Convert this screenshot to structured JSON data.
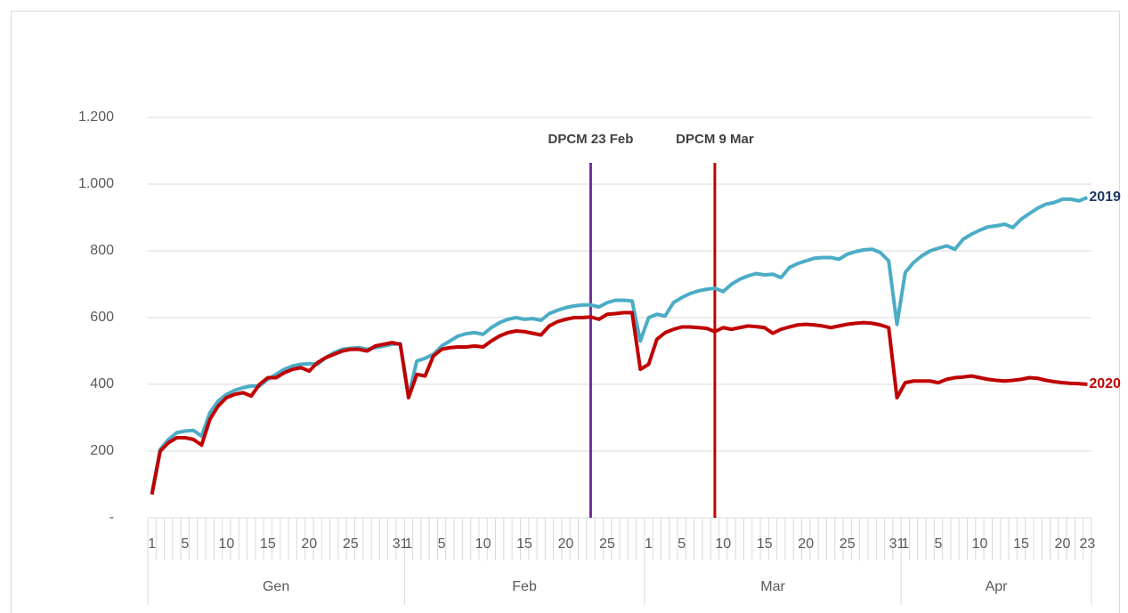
{
  "chart_data": {
    "type": "line",
    "categories": [
      "1",
      null,
      null,
      null,
      "5",
      null,
      null,
      null,
      null,
      "10",
      null,
      null,
      null,
      null,
      "15",
      null,
      null,
      null,
      null,
      "20",
      null,
      null,
      null,
      null,
      "25",
      null,
      null,
      null,
      null,
      null,
      "31",
      "1",
      null,
      null,
      null,
      "5",
      null,
      null,
      null,
      null,
      "10",
      null,
      null,
      null,
      null,
      "15",
      null,
      null,
      null,
      null,
      "20",
      null,
      null,
      null,
      null,
      "25",
      null,
      null,
      null,
      null,
      "1",
      null,
      null,
      null,
      "5",
      null,
      null,
      null,
      null,
      "10",
      null,
      null,
      null,
      null,
      "15",
      null,
      null,
      null,
      null,
      "20",
      null,
      null,
      null,
      null,
      "25",
      null,
      null,
      null,
      null,
      null,
      "31",
      "1",
      null,
      null,
      null,
      "5",
      null,
      null,
      null,
      null,
      "10",
      null,
      null,
      null,
      null,
      "15",
      null,
      null,
      null,
      null,
      "20",
      null,
      null,
      "23"
    ],
    "months": [
      "Gen",
      "Gen",
      "Gen",
      "Gen",
      "Gen",
      "Gen",
      "Gen",
      "Gen",
      "Gen",
      "Gen",
      "Gen",
      "Gen",
      "Gen",
      "Gen",
      "Gen",
      "Gen",
      "Gen",
      "Gen",
      "Gen",
      "Gen",
      "Gen",
      "Gen",
      "Gen",
      "Gen",
      "Gen",
      "Gen",
      "Gen",
      "Gen",
      "Gen",
      "Gen",
      "Gen",
      "Feb",
      "Feb",
      "Feb",
      "Feb",
      "Feb",
      "Feb",
      "Feb",
      "Feb",
      "Feb",
      "Feb",
      "Feb",
      "Feb",
      "Feb",
      "Feb",
      "Feb",
      "Feb",
      "Feb",
      "Feb",
      "Feb",
      "Feb",
      "Feb",
      "Feb",
      "Feb",
      "Feb",
      "Feb",
      "Feb",
      "Feb",
      "Feb",
      "Feb",
      "Mar",
      "Mar",
      "Mar",
      "Mar",
      "Mar",
      "Mar",
      "Mar",
      "Mar",
      "Mar",
      "Mar",
      "Mar",
      "Mar",
      "Mar",
      "Mar",
      "Mar",
      "Mar",
      "Mar",
      "Mar",
      "Mar",
      "Mar",
      "Mar",
      "Mar",
      "Mar",
      "Mar",
      "Mar",
      "Mar",
      "Mar",
      "Mar",
      "Mar",
      "Mar",
      "Mar",
      "Apr",
      "Apr",
      "Apr",
      "Apr",
      "Apr",
      "Apr",
      "Apr",
      "Apr",
      "Apr",
      "Apr",
      "Apr",
      "Apr",
      "Apr",
      "Apr",
      "Apr",
      "Apr",
      "Apr",
      "Apr",
      "Apr",
      "Apr",
      "Apr",
      "Apr",
      "Apr"
    ],
    "series": [
      {
        "name": "2019",
        "color": "#4bacc6",
        "label_color": "#1f3864",
        "values": [
          75,
          205,
          235,
          255,
          260,
          262,
          245,
          315,
          350,
          370,
          382,
          390,
          395,
          395,
          415,
          430,
          445,
          455,
          460,
          462,
          460,
          480,
          495,
          505,
          508,
          510,
          505,
          510,
          515,
          520,
          522,
          365,
          470,
          478,
          490,
          515,
          530,
          545,
          552,
          555,
          550,
          570,
          585,
          595,
          600,
          595,
          597,
          592,
          612,
          622,
          630,
          635,
          638,
          638,
          632,
          645,
          652,
          652,
          650,
          530,
          600,
          610,
          605,
          645,
          660,
          672,
          680,
          685,
          688,
          678,
          700,
          715,
          725,
          732,
          728,
          730,
          720,
          750,
          762,
          770,
          778,
          780,
          780,
          775,
          790,
          798,
          803,
          805,
          795,
          770,
          580,
          735,
          765,
          785,
          800,
          808,
          815,
          805,
          835,
          850,
          862,
          872,
          875,
          880,
          870,
          895,
          912,
          928,
          940,
          945,
          955,
          955,
          950,
          960
        ]
      },
      {
        "name": "2020",
        "color": "#c00000",
        "label_color": "#c00000",
        "values": [
          70,
          200,
          225,
          240,
          240,
          235,
          218,
          295,
          335,
          360,
          370,
          375,
          365,
          400,
          420,
          420,
          435,
          445,
          450,
          440,
          465,
          480,
          490,
          500,
          505,
          505,
          500,
          515,
          520,
          525,
          520,
          360,
          430,
          425,
          485,
          505,
          510,
          512,
          512,
          515,
          512,
          530,
          545,
          555,
          560,
          558,
          553,
          548,
          575,
          588,
          595,
          600,
          600,
          602,
          595,
          610,
          612,
          615,
          615,
          445,
          460,
          535,
          555,
          565,
          572,
          572,
          570,
          568,
          558,
          570,
          565,
          570,
          575,
          573,
          570,
          553,
          565,
          572,
          578,
          580,
          578,
          575,
          570,
          575,
          580,
          583,
          585,
          583,
          578,
          570,
          360,
          405,
          410,
          410,
          410,
          405,
          415,
          420,
          422,
          425,
          420,
          415,
          412,
          410,
          412,
          415,
          420,
          418,
          412,
          408,
          405,
          403,
          402,
          400
        ]
      }
    ],
    "annotations": [
      {
        "text": "DPCM 23 Feb",
        "index": 53,
        "color": "#7030a0"
      },
      {
        "text": "DPCM 9 Mar",
        "index": 68,
        "color": "#c00000"
      }
    ],
    "ylim": [
      0,
      1200
    ],
    "yticks": [
      {
        "value": 0,
        "label": "-"
      },
      200,
      400,
      600,
      800,
      {
        "value": 1000,
        "label": "1.000"
      },
      {
        "value": 1200,
        "label": "1.200"
      }
    ],
    "grid": true
  }
}
